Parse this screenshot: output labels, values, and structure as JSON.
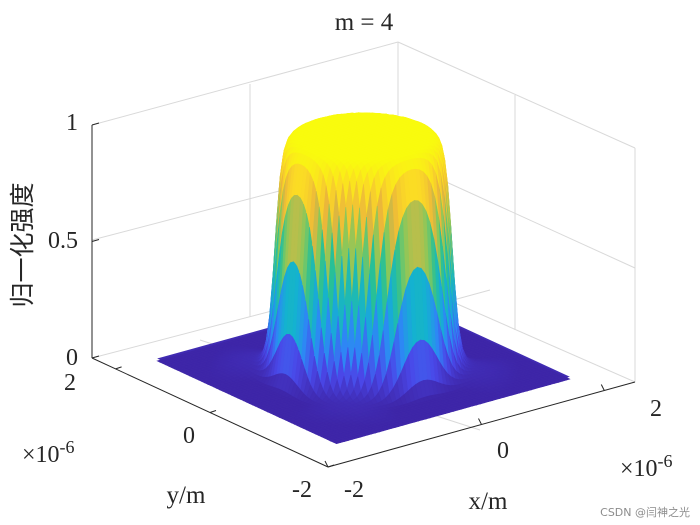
{
  "chart_data": {
    "type": "surface3d",
    "title": "m = 4",
    "xlabel": "x/m",
    "ylabel": "y/m",
    "zlabel": "归一化强度",
    "x_ticks": [
      "-2",
      "0",
      "2"
    ],
    "y_ticks": [
      "-2",
      "0",
      "2"
    ],
    "z_ticks": [
      "0",
      "0.5",
      "1"
    ],
    "x_exponent": "×10",
    "x_exponent_power": "-6",
    "y_exponent": "×10",
    "y_exponent_power": "-6",
    "xlim": [
      -2.5e-06,
      2.5e-06
    ],
    "ylim": [
      -2.5e-06,
      2.5e-06
    ],
    "zlim": [
      0,
      1
    ],
    "grid": true,
    "colormap": "parula",
    "colormap_stops": [
      "#3E26A8",
      "#4A47E8",
      "#2E87F5",
      "#14B2D0",
      "#28C096",
      "#8AC85A",
      "#EAB43C",
      "#FBD827",
      "#F9FB0E"
    ],
    "surface": {
      "shape": "flat-top cylinder with edge ripple",
      "plateau_radius": 1.15e-06,
      "peak": 1.0,
      "sidelobe_amplitude": 0.04
    }
  },
  "watermark": "CSDN @闫神之光"
}
